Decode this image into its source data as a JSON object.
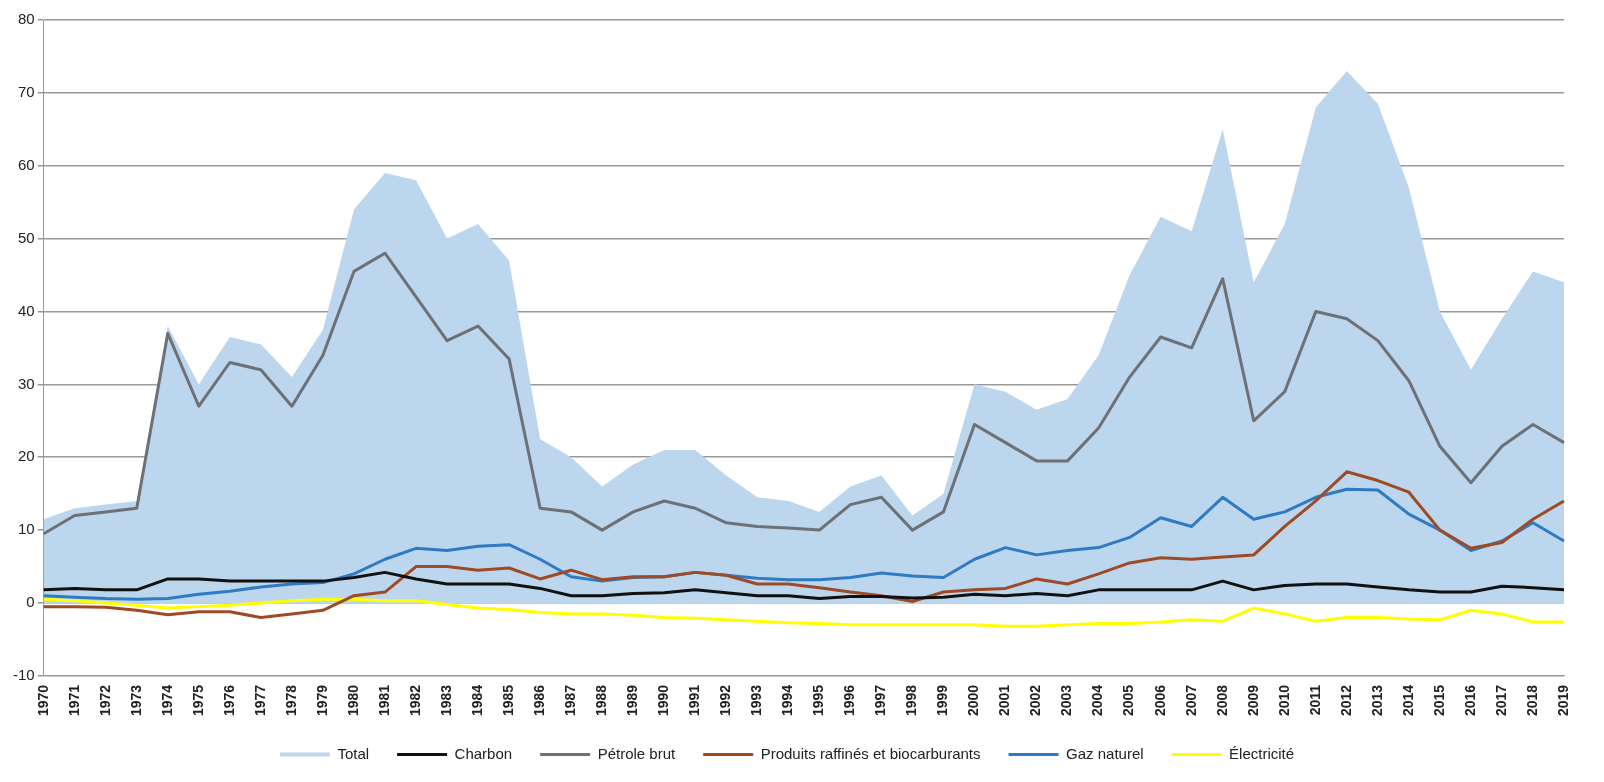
{
  "chart_data": {
    "type": "line",
    "categories": [
      "1970",
      "1971",
      "1972",
      "1973",
      "1974",
      "1975",
      "1976",
      "1977",
      "1978",
      "1979",
      "1980",
      "1981",
      "1982",
      "1983",
      "1984",
      "1985",
      "1986",
      "1987",
      "1988",
      "1989",
      "1990",
      "1991",
      "1992",
      "1993",
      "1994",
      "1995",
      "1996",
      "1997",
      "1998",
      "1999",
      "2000",
      "2001",
      "2002",
      "2003",
      "2004",
      "2005",
      "2006",
      "2007",
      "2008",
      "2009",
      "2010",
      "2011",
      "2012",
      "2013",
      "2014",
      "2015",
      "2016",
      "2017",
      "2018",
      "2019"
    ],
    "series": [
      {
        "name": "Total",
        "type": "area",
        "color": "#bcd6ee",
        "values": [
          11.5,
          13,
          13.5,
          14,
          38,
          30,
          36.5,
          35.5,
          31,
          37.5,
          54,
          59,
          58,
          50,
          52,
          47,
          22.5,
          20,
          16,
          19,
          21,
          21,
          17.5,
          14.5,
          14,
          12.5,
          16,
          17.5,
          12,
          15,
          30,
          29,
          26.5,
          28,
          34,
          45,
          53,
          51,
          65,
          44,
          52,
          68,
          73,
          68.5,
          57,
          40,
          32,
          39,
          45.5,
          44
        ]
      },
      {
        "name": "Charbon",
        "color": "#111111",
        "values": [
          1.8,
          2,
          1.8,
          1.8,
          3.3,
          3.3,
          3,
          3,
          3,
          3,
          3.5,
          4.2,
          3.3,
          2.6,
          2.6,
          2.6,
          2,
          1,
          1,
          1.3,
          1.4,
          1.8,
          1.4,
          1,
          1,
          0.6,
          0.9,
          0.9,
          0.7,
          0.8,
          1.2,
          1,
          1.3,
          1,
          1.8,
          1.8,
          1.8,
          1.8,
          3,
          1.8,
          2.4,
          2.6,
          2.6,
          2.2,
          1.8,
          1.5,
          1.5,
          2.3,
          2.1,
          1.8
        ]
      },
      {
        "name": "Pétrole brut",
        "color": "#6d7175",
        "values": [
          9.5,
          12,
          12.5,
          13,
          37,
          27,
          33,
          32,
          27,
          34,
          45.5,
          48,
          42,
          36,
          38,
          33.5,
          13,
          12.5,
          10,
          12.5,
          14,
          13,
          11,
          10.5,
          10.3,
          10,
          13.5,
          14.5,
          10,
          12.5,
          24.5,
          22,
          19.5,
          19.5,
          24,
          31,
          36.5,
          35,
          44.5,
          25,
          29,
          40,
          39,
          36,
          30.5,
          21.5,
          16.5,
          21.5,
          24.5,
          22
        ]
      },
      {
        "name": "Produits raffinés et biocarburants",
        "color": "#9e4a25",
        "values": [
          -0.5,
          -0.5,
          -0.6,
          -1,
          -1.6,
          -1.2,
          -1.2,
          -2,
          -1.5,
          -1,
          1,
          1.5,
          5,
          5,
          4.5,
          4.8,
          3.3,
          4.5,
          3.2,
          3.6,
          3.6,
          4.2,
          3.8,
          2.6,
          2.6,
          2.1,
          1.5,
          1,
          0.2,
          1.5,
          1.8,
          2,
          3.3,
          2.6,
          4,
          5.5,
          6.2,
          6,
          6.3,
          6.6,
          10.5,
          14,
          18,
          16.8,
          15.2,
          10,
          7.5,
          8.3,
          11.5,
          14
        ]
      },
      {
        "name": "Gaz naturel",
        "color": "#2e7bc4",
        "values": [
          1,
          0.8,
          0.6,
          0.5,
          0.6,
          1.2,
          1.6,
          2.2,
          2.6,
          2.8,
          4,
          6,
          7.5,
          7.2,
          7.8,
          8,
          6,
          3.6,
          3,
          3.5,
          3.6,
          4.2,
          3.8,
          3.4,
          3.2,
          3.2,
          3.5,
          4.1,
          3.7,
          3.5,
          6,
          7.6,
          6.6,
          7.2,
          7.6,
          9,
          11.7,
          10.5,
          14.5,
          11.5,
          12.5,
          14.5,
          15.6,
          15.5,
          12.2,
          10,
          7.2,
          8.5,
          11,
          8.5
        ]
      },
      {
        "name": "Électricité",
        "color": "#ffff00",
        "values": [
          0.5,
          0.3,
          0,
          -0.3,
          -0.7,
          -0.5,
          -0.3,
          0,
          0.3,
          0.5,
          0.5,
          0.3,
          0.3,
          -0.2,
          -0.7,
          -0.9,
          -1.3,
          -1.5,
          -1.5,
          -1.7,
          -2,
          -2.1,
          -2.3,
          -2.5,
          -2.7,
          -2.8,
          -3,
          -3,
          -3,
          -3,
          -3,
          -3.2,
          -3.2,
          -3,
          -2.8,
          -2.8,
          -2.6,
          -2.3,
          -2.5,
          -0.7,
          -1.5,
          -2.5,
          -2,
          -2,
          -2.2,
          -2.3,
          -1,
          -1.5,
          -2.6,
          -2.6
        ]
      }
    ],
    "ylim": [
      -10,
      80
    ],
    "yticks": [
      -10,
      0,
      10,
      20,
      30,
      40,
      50,
      60,
      70,
      80
    ],
    "grid": "y",
    "legend": "bottom",
    "marker": "none",
    "line_style": "solid"
  }
}
